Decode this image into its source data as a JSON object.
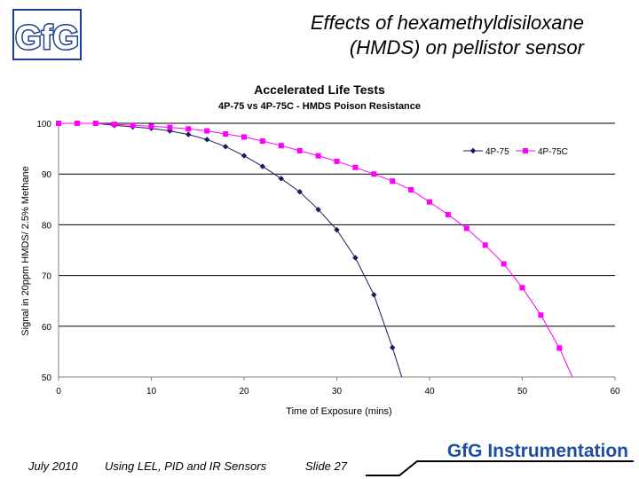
{
  "slide": {
    "title_line1": "Effects of hexamethyldisiloxane",
    "title_line2": "(HMDS) on pellistor sensor",
    "logo_text": "GfG",
    "brand_text": "GfG Instrumentation",
    "footer": {
      "date": "July 2010",
      "topic": "Using LEL, PID and IR Sensors",
      "slide": "Slide 27"
    },
    "colors": {
      "series1": "#1a1a5e",
      "series2": "#ff00ff",
      "logo": "#1f3f8f",
      "brand": "#1f4f9f"
    }
  },
  "chart_data": {
    "type": "line",
    "title": "Accelerated Life Tests",
    "subtitle": "4P-75 vs 4P-75C - HMDS Poison Resistance",
    "xlabel": "Time of Exposure (mins)",
    "ylabel": "Signal in 20ppm HMDS/ 2.5% Methane",
    "xlim": [
      0,
      60
    ],
    "ylim": [
      50,
      100
    ],
    "xticks": [
      0,
      10,
      20,
      30,
      40,
      50,
      60
    ],
    "yticks": [
      50,
      60,
      70,
      80,
      90,
      100
    ],
    "grid": "horizontal",
    "legend": "top-right",
    "series": [
      {
        "name": "4P-75",
        "marker": "diamond",
        "x": [
          0,
          2,
          4,
          6,
          8,
          10,
          12,
          14,
          16,
          18,
          20,
          22,
          24,
          26,
          28,
          30,
          32,
          34,
          36,
          37
        ],
        "y": [
          100,
          100,
          100,
          99.6,
          99.3,
          99,
          98.5,
          97.8,
          96.8,
          95.4,
          93.6,
          91.5,
          89.1,
          86.5,
          83,
          79,
          73.5,
          66.2,
          55.8,
          50
        ]
      },
      {
        "name": "4P-75C",
        "marker": "square",
        "x": [
          0,
          2,
          4,
          6,
          8,
          10,
          12,
          14,
          16,
          18,
          20,
          22,
          24,
          26,
          28,
          30,
          32,
          34,
          36,
          38,
          40,
          42,
          44,
          46,
          48,
          50,
          52,
          54,
          55.4
        ],
        "y": [
          100,
          100,
          100,
          99.8,
          99.6,
          99.4,
          99.2,
          98.9,
          98.5,
          97.9,
          97.3,
          96.5,
          95.6,
          94.6,
          93.6,
          92.5,
          91.3,
          90,
          88.6,
          86.9,
          84.5,
          82,
          79.3,
          76,
          72.3,
          67.6,
          62.2,
          55.7,
          50
        ]
      }
    ]
  }
}
